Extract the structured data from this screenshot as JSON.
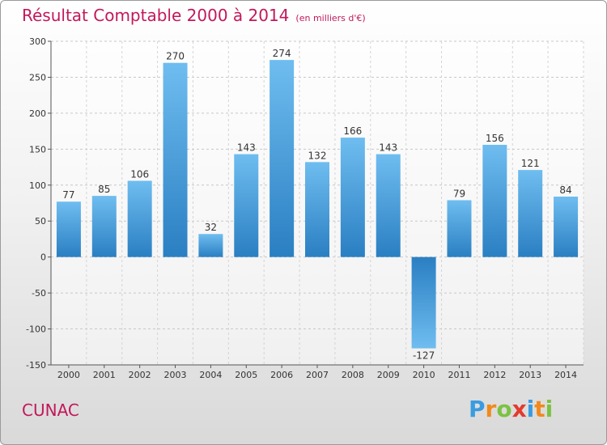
{
  "chart_data": {
    "type": "bar",
    "title": "Résultat Comptable 2000 à 2014",
    "subtitle": "(en milliers d'€)",
    "categories": [
      "2000",
      "2001",
      "2002",
      "2003",
      "2004",
      "2005",
      "2006",
      "2007",
      "2008",
      "2009",
      "2010",
      "2011",
      "2012",
      "2013",
      "2014"
    ],
    "values": [
      77,
      85,
      106,
      270,
      32,
      143,
      274,
      132,
      166,
      143,
      -127,
      79,
      156,
      121,
      84
    ],
    "value_labels": [
      "77",
      "85",
      "106",
      "270",
      "32",
      "143",
      "274",
      "132",
      "166",
      "143",
      "-127",
      "79",
      "156",
      "121",
      "84"
    ],
    "ylim": [
      -150,
      300
    ],
    "yticks": [
      300,
      250,
      200,
      150,
      100,
      50,
      0,
      -50,
      -100,
      -150
    ],
    "ytick_labels": [
      "300",
      "250",
      "200",
      "150",
      "100",
      "50",
      "0",
      "-50",
      "-100",
      "-150"
    ],
    "xlabel": "",
    "ylabel": "",
    "grid": true
  },
  "footer": {
    "commune": "CUNAC",
    "logo_letters": [
      "P",
      "r",
      "o",
      "x",
      "i",
      "t",
      "i"
    ],
    "logo_colors": [
      "#3a9be0",
      "#f08a1c",
      "#7cc242",
      "#e23b2e",
      "#3a9be0",
      "#f08a1c",
      "#7cc242"
    ]
  }
}
